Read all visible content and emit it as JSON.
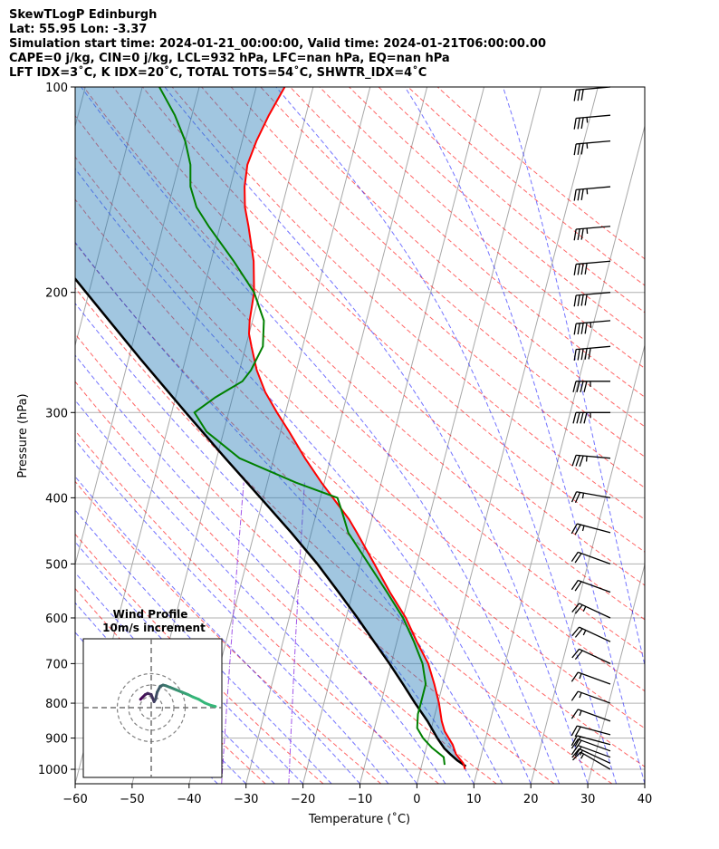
{
  "header": {
    "line1": "SkewTLogP Edinburgh",
    "line2": "Lat: 55.95   Lon: -3.37",
    "line3": "Simulation start time: 2024-01-21_00:00:00, Valid time: 2024-01-21T06:00:00.00",
    "line4": "CAPE=0 j/kg, CIN=0 j/kg, LCL=932 hPa, LFC=nan hPa, EQ=nan hPa",
    "line5": "LFT IDX=3˚C, K IDX=20˚C, TOTAL TOTS=54˚C, SHWTR_IDX=4˚C"
  },
  "chart_data": {
    "type": "skewt",
    "xlabel": "Temperature (˚C)",
    "ylabel": "Pressure (hPa)",
    "xlim": [
      -60,
      40
    ],
    "ylim": [
      1050,
      100
    ],
    "xticks": [
      -60,
      -50,
      -40,
      -30,
      -20,
      -10,
      0,
      10,
      20,
      30,
      40
    ],
    "xtick_labels": [
      "−60",
      "−50",
      "−40",
      "−30",
      "−20",
      "−10",
      "0",
      "10",
      "20",
      "30",
      "40"
    ],
    "yticks": [
      1000,
      900,
      800,
      700,
      600,
      500,
      400,
      300,
      200,
      100
    ],
    "ytick_labels": [
      "1000",
      "900",
      "800",
      "700",
      "600",
      "500",
      "400",
      "300",
      "200",
      "100"
    ],
    "temperature": {
      "color": "#ff0000",
      "p": [
        1000,
        980,
        950,
        920,
        880,
        850,
        800,
        750,
        700,
        650,
        600,
        550,
        500,
        450,
        430,
        410,
        380,
        350,
        320,
        300,
        280,
        260,
        240,
        230,
        220,
        200,
        180,
        160,
        150,
        140,
        130,
        120,
        110,
        100
      ],
      "t": [
        7.8,
        7.2,
        5.5,
        4.5,
        2.5,
        1.5,
        0.2,
        -1.5,
        -3.5,
        -6.5,
        -9.5,
        -13.5,
        -17.5,
        -22.0,
        -24.0,
        -26.5,
        -30.5,
        -34.5,
        -38.5,
        -41.5,
        -44.5,
        -47.0,
        -49.0,
        -50.0,
        -50.5,
        -51.0,
        -52.5,
        -55.0,
        -56.5,
        -57.5,
        -58.0,
        -57.5,
        -56.5,
        -55.0
      ]
    },
    "dewpoint": {
      "color": "#008000",
      "p": [
        985,
        960,
        930,
        900,
        870,
        830,
        800,
        750,
        700,
        650,
        600,
        550,
        500,
        450,
        420,
        400,
        380,
        350,
        320,
        300,
        285,
        270,
        260,
        240,
        220,
        200,
        180,
        160,
        150,
        140,
        130,
        120,
        110,
        100
      ],
      "t": [
        4.0,
        3.5,
        1.0,
        -1.0,
        -2.5,
        -3.0,
        -3.0,
        -3.0,
        -4.5,
        -7.0,
        -10.0,
        -14.0,
        -18.5,
        -23.5,
        -25.5,
        -27.0,
        -35.0,
        -46.0,
        -53.0,
        -56.0,
        -53.0,
        -49.0,
        -48.0,
        -47.0,
        -48.0,
        -51.0,
        -56.0,
        -62.0,
        -65.0,
        -67.0,
        -68.0,
        -70.0,
        -73.0,
        -77.0
      ]
    },
    "parcel": {
      "color": "#000000",
      "p": [
        990,
        970,
        950,
        932,
        900,
        850,
        800,
        750,
        700,
        650,
        600,
        550,
        500,
        450,
        400,
        350,
        300,
        250,
        200,
        150,
        100
      ],
      "t": [
        7.8,
        6.0,
        4.5,
        3.2,
        1.5,
        -1.0,
        -4.0,
        -7.0,
        -10.3,
        -14.0,
        -18.0,
        -22.5,
        -27.5,
        -33.5,
        -40.5,
        -48.5,
        -57.5,
        -68.0,
        -80.5,
        -96.5,
        -119.0
      ]
    },
    "wind_barbs": {
      "p": [
        1000,
        980,
        960,
        940,
        920,
        890,
        850,
        800,
        750,
        700,
        650,
        600,
        550,
        500,
        450,
        400,
        350,
        300,
        270,
        240,
        220,
        200,
        180,
        160,
        140,
        120,
        110,
        100
      ],
      "speed_kt": [
        15,
        15,
        20,
        20,
        20,
        20,
        15,
        15,
        15,
        20,
        25,
        25,
        20,
        20,
        25,
        25,
        35,
        45,
        45,
        50,
        45,
        40,
        40,
        35,
        35,
        35,
        35,
        30
      ],
      "direction_deg": [
        240,
        245,
        250,
        250,
        255,
        255,
        250,
        250,
        250,
        245,
        245,
        245,
        250,
        250,
        255,
        260,
        265,
        270,
        270,
        275,
        275,
        275,
        275,
        275,
        275,
        275,
        275,
        275
      ]
    },
    "hodograph": {
      "title": "Wind Profile",
      "subtitle": "10m/s increment",
      "rings_ms": [
        10,
        20,
        30
      ],
      "u": [
        -4.5,
        -3.5,
        -2.5,
        -1.5,
        0,
        1.2,
        1.8,
        2.5,
        3.8,
        5.0,
        6.2,
        8.0,
        10.5,
        13.0,
        15.5,
        17.5,
        20.0,
        22.5,
        25.0,
        27.0
      ],
      "v": [
        3.5,
        4.5,
        5.5,
        6.0,
        5.5,
        2.5,
        3.5,
        6.5,
        9.0,
        9.5,
        9.2,
        8.5,
        7.5,
        6.5,
        5.5,
        4.5,
        3.5,
        2.0,
        1.0,
        0.5
      ]
    }
  }
}
